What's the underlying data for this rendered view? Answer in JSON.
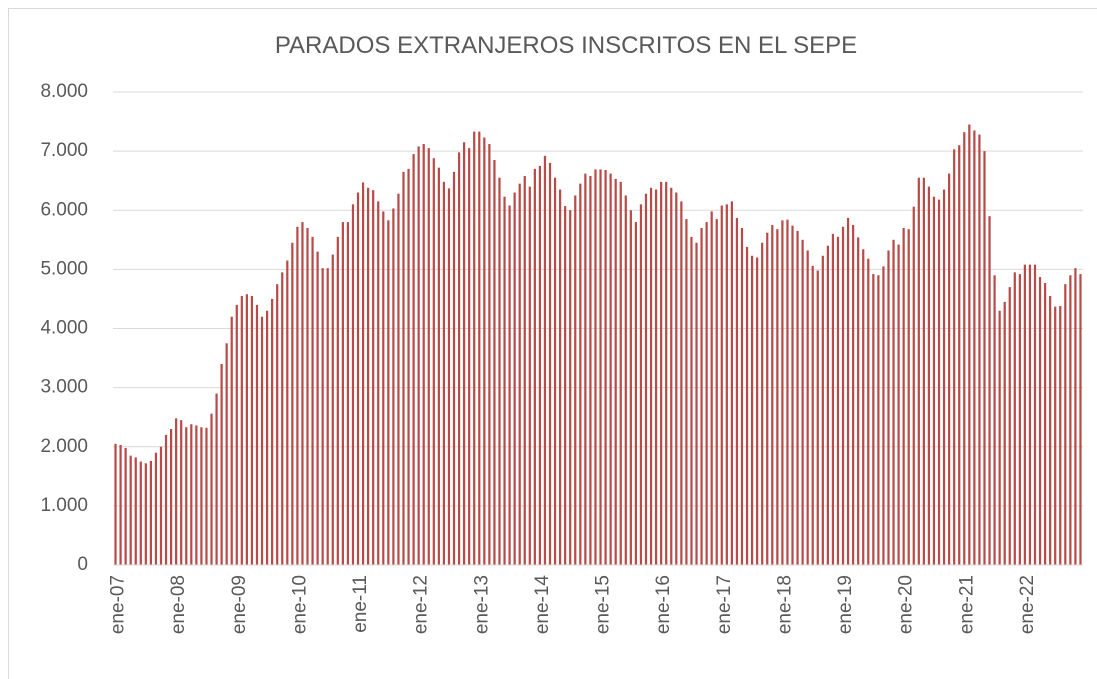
{
  "chart_data": {
    "type": "bar",
    "title": "PARADOS EXTRANJEROS INSCRITOS EN EL SEPE",
    "categories": [
      "ene-07",
      null,
      null,
      null,
      null,
      null,
      null,
      null,
      null,
      null,
      null,
      null,
      "ene-08",
      null,
      null,
      null,
      null,
      null,
      null,
      null,
      null,
      null,
      null,
      null,
      "ene-09",
      null,
      null,
      null,
      null,
      null,
      null,
      null,
      null,
      null,
      null,
      null,
      "ene-10",
      null,
      null,
      null,
      null,
      null,
      null,
      null,
      null,
      null,
      null,
      null,
      "ene-11",
      null,
      null,
      null,
      null,
      null,
      null,
      null,
      null,
      null,
      null,
      null,
      "ene-12",
      null,
      null,
      null,
      null,
      null,
      null,
      null,
      null,
      null,
      null,
      null,
      "ene-13",
      null,
      null,
      null,
      null,
      null,
      null,
      null,
      null,
      null,
      null,
      null,
      "ene-14",
      null,
      null,
      null,
      null,
      null,
      null,
      null,
      null,
      null,
      null,
      null,
      "ene-15",
      null,
      null,
      null,
      null,
      null,
      null,
      null,
      null,
      null,
      null,
      null,
      "ene-16",
      null,
      null,
      null,
      null,
      null,
      null,
      null,
      null,
      null,
      null,
      null,
      "ene-17",
      null,
      null,
      null,
      null,
      null,
      null,
      null,
      null,
      null,
      null,
      null,
      "ene-18",
      null,
      null,
      null,
      null,
      null,
      null,
      null,
      null,
      null,
      null,
      null,
      "ene-19",
      null,
      null,
      null,
      null,
      null,
      null,
      null,
      null,
      null,
      null,
      null,
      "ene-20",
      null,
      null,
      null,
      null,
      null,
      null,
      null,
      null,
      null,
      null,
      null,
      "ene-21",
      null,
      null,
      null,
      null,
      null,
      null,
      null,
      null,
      null,
      null,
      null,
      "ene-22",
      null,
      null,
      null,
      null,
      null,
      null,
      null,
      null,
      null,
      null,
      null
    ],
    "values": [
      2050,
      2030,
      1980,
      1850,
      1820,
      1750,
      1720,
      1760,
      1900,
      2000,
      2200,
      2300,
      2480,
      2450,
      2330,
      2380,
      2360,
      2330,
      2320,
      2560,
      2900,
      3400,
      3750,
      4200,
      4400,
      4550,
      4580,
      4550,
      4400,
      4200,
      4300,
      4500,
      4750,
      4950,
      5150,
      5450,
      5720,
      5800,
      5700,
      5550,
      5300,
      5020,
      5020,
      5250,
      5550,
      5800,
      5800,
      6100,
      6300,
      6470,
      6380,
      6340,
      6150,
      5980,
      5830,
      6030,
      6280,
      6650,
      6700,
      6950,
      7080,
      7120,
      7050,
      6880,
      6720,
      6480,
      6370,
      6650,
      6980,
      7150,
      7050,
      7330,
      7330,
      7230,
      7120,
      6850,
      6550,
      6230,
      6080,
      6300,
      6450,
      6580,
      6400,
      6700,
      6750,
      6920,
      6800,
      6550,
      6350,
      6070,
      6000,
      6250,
      6450,
      6620,
      6580,
      6690,
      6690,
      6680,
      6620,
      6530,
      6480,
      6250,
      6000,
      5800,
      6100,
      6280,
      6380,
      6350,
      6480,
      6480,
      6380,
      6300,
      6150,
      5850,
      5550,
      5450,
      5700,
      5800,
      5980,
      5850,
      6080,
      6100,
      6150,
      5870,
      5700,
      5380,
      5230,
      5200,
      5450,
      5620,
      5750,
      5680,
      5830,
      5840,
      5740,
      5650,
      5500,
      5320,
      5060,
      4980,
      5230,
      5400,
      5600,
      5550,
      5720,
      5870,
      5750,
      5540,
      5340,
      5180,
      4920,
      4900,
      5050,
      5320,
      5500,
      5420,
      5700,
      5680,
      6060,
      6550,
      6550,
      6400,
      6230,
      6180,
      6350,
      6620,
      7030,
      7100,
      7320,
      7450,
      7350,
      7280,
      7000,
      5900,
      4900,
      4300,
      4450,
      4700,
      4950,
      4920,
      5080,
      5080,
      5080,
      4870,
      4770,
      4550,
      4370,
      4380,
      4750,
      4900,
      5020,
      4920
    ],
    "color": "#b84a47",
    "ylim": [
      0,
      8000
    ],
    "yticks": [
      0,
      {
        "value": 1000,
        "label": "1.000"
      },
      {
        "value": 2000,
        "label": "2.000"
      },
      {
        "value": 3000,
        "label": "3.000"
      },
      {
        "value": 4000,
        "label": "4.000"
      },
      {
        "value": 5000,
        "label": "5.000"
      },
      {
        "value": 6000,
        "label": "6.000"
      },
      {
        "value": 7000,
        "label": "7.000"
      },
      {
        "value": 8000,
        "label": "8.000"
      }
    ],
    "grid": true
  }
}
